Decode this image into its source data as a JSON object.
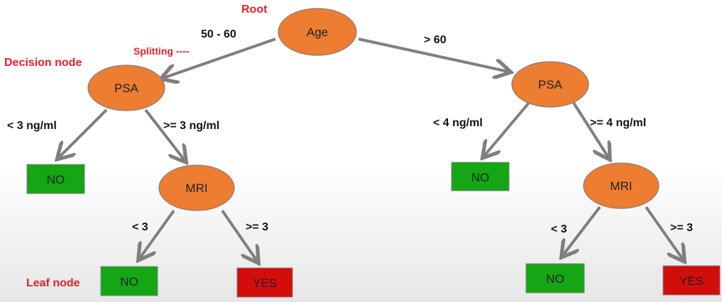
{
  "annotations": {
    "root": "Root",
    "splitting": "Splitting ----",
    "decision_node": "Decision node",
    "leaf_node": "Leaf node"
  },
  "nodes": {
    "age": "Age",
    "psa_left": "PSA",
    "psa_right": "PSA",
    "mri_left": "MRI",
    "mri_right": "MRI"
  },
  "leaves": {
    "no_left_top": "NO",
    "no_left_bottom": "NO",
    "yes_left_bottom": "YES",
    "no_right_top": "NO",
    "no_right_bottom": "NO",
    "yes_right_bottom": "YES"
  },
  "edge_labels": {
    "age_left": "50 - 60",
    "age_right": "> 60",
    "psa_left_lt": "< 3 ng/ml",
    "psa_left_ge": ">= 3 ng/ml",
    "psa_right_lt": "< 4 ng/ml",
    "psa_right_ge": ">= 4 ng/ml",
    "mri_left_lt": "< 3",
    "mri_left_ge": ">= 3",
    "mri_right_lt": "< 3",
    "mri_right_ge": ">= 3"
  },
  "colors": {
    "node_fill": "#ed7d31",
    "edge": "#7f7f7f",
    "leaf_no": "#14a614",
    "leaf_yes": "#d30c0c",
    "annotation": "#e8212a"
  }
}
